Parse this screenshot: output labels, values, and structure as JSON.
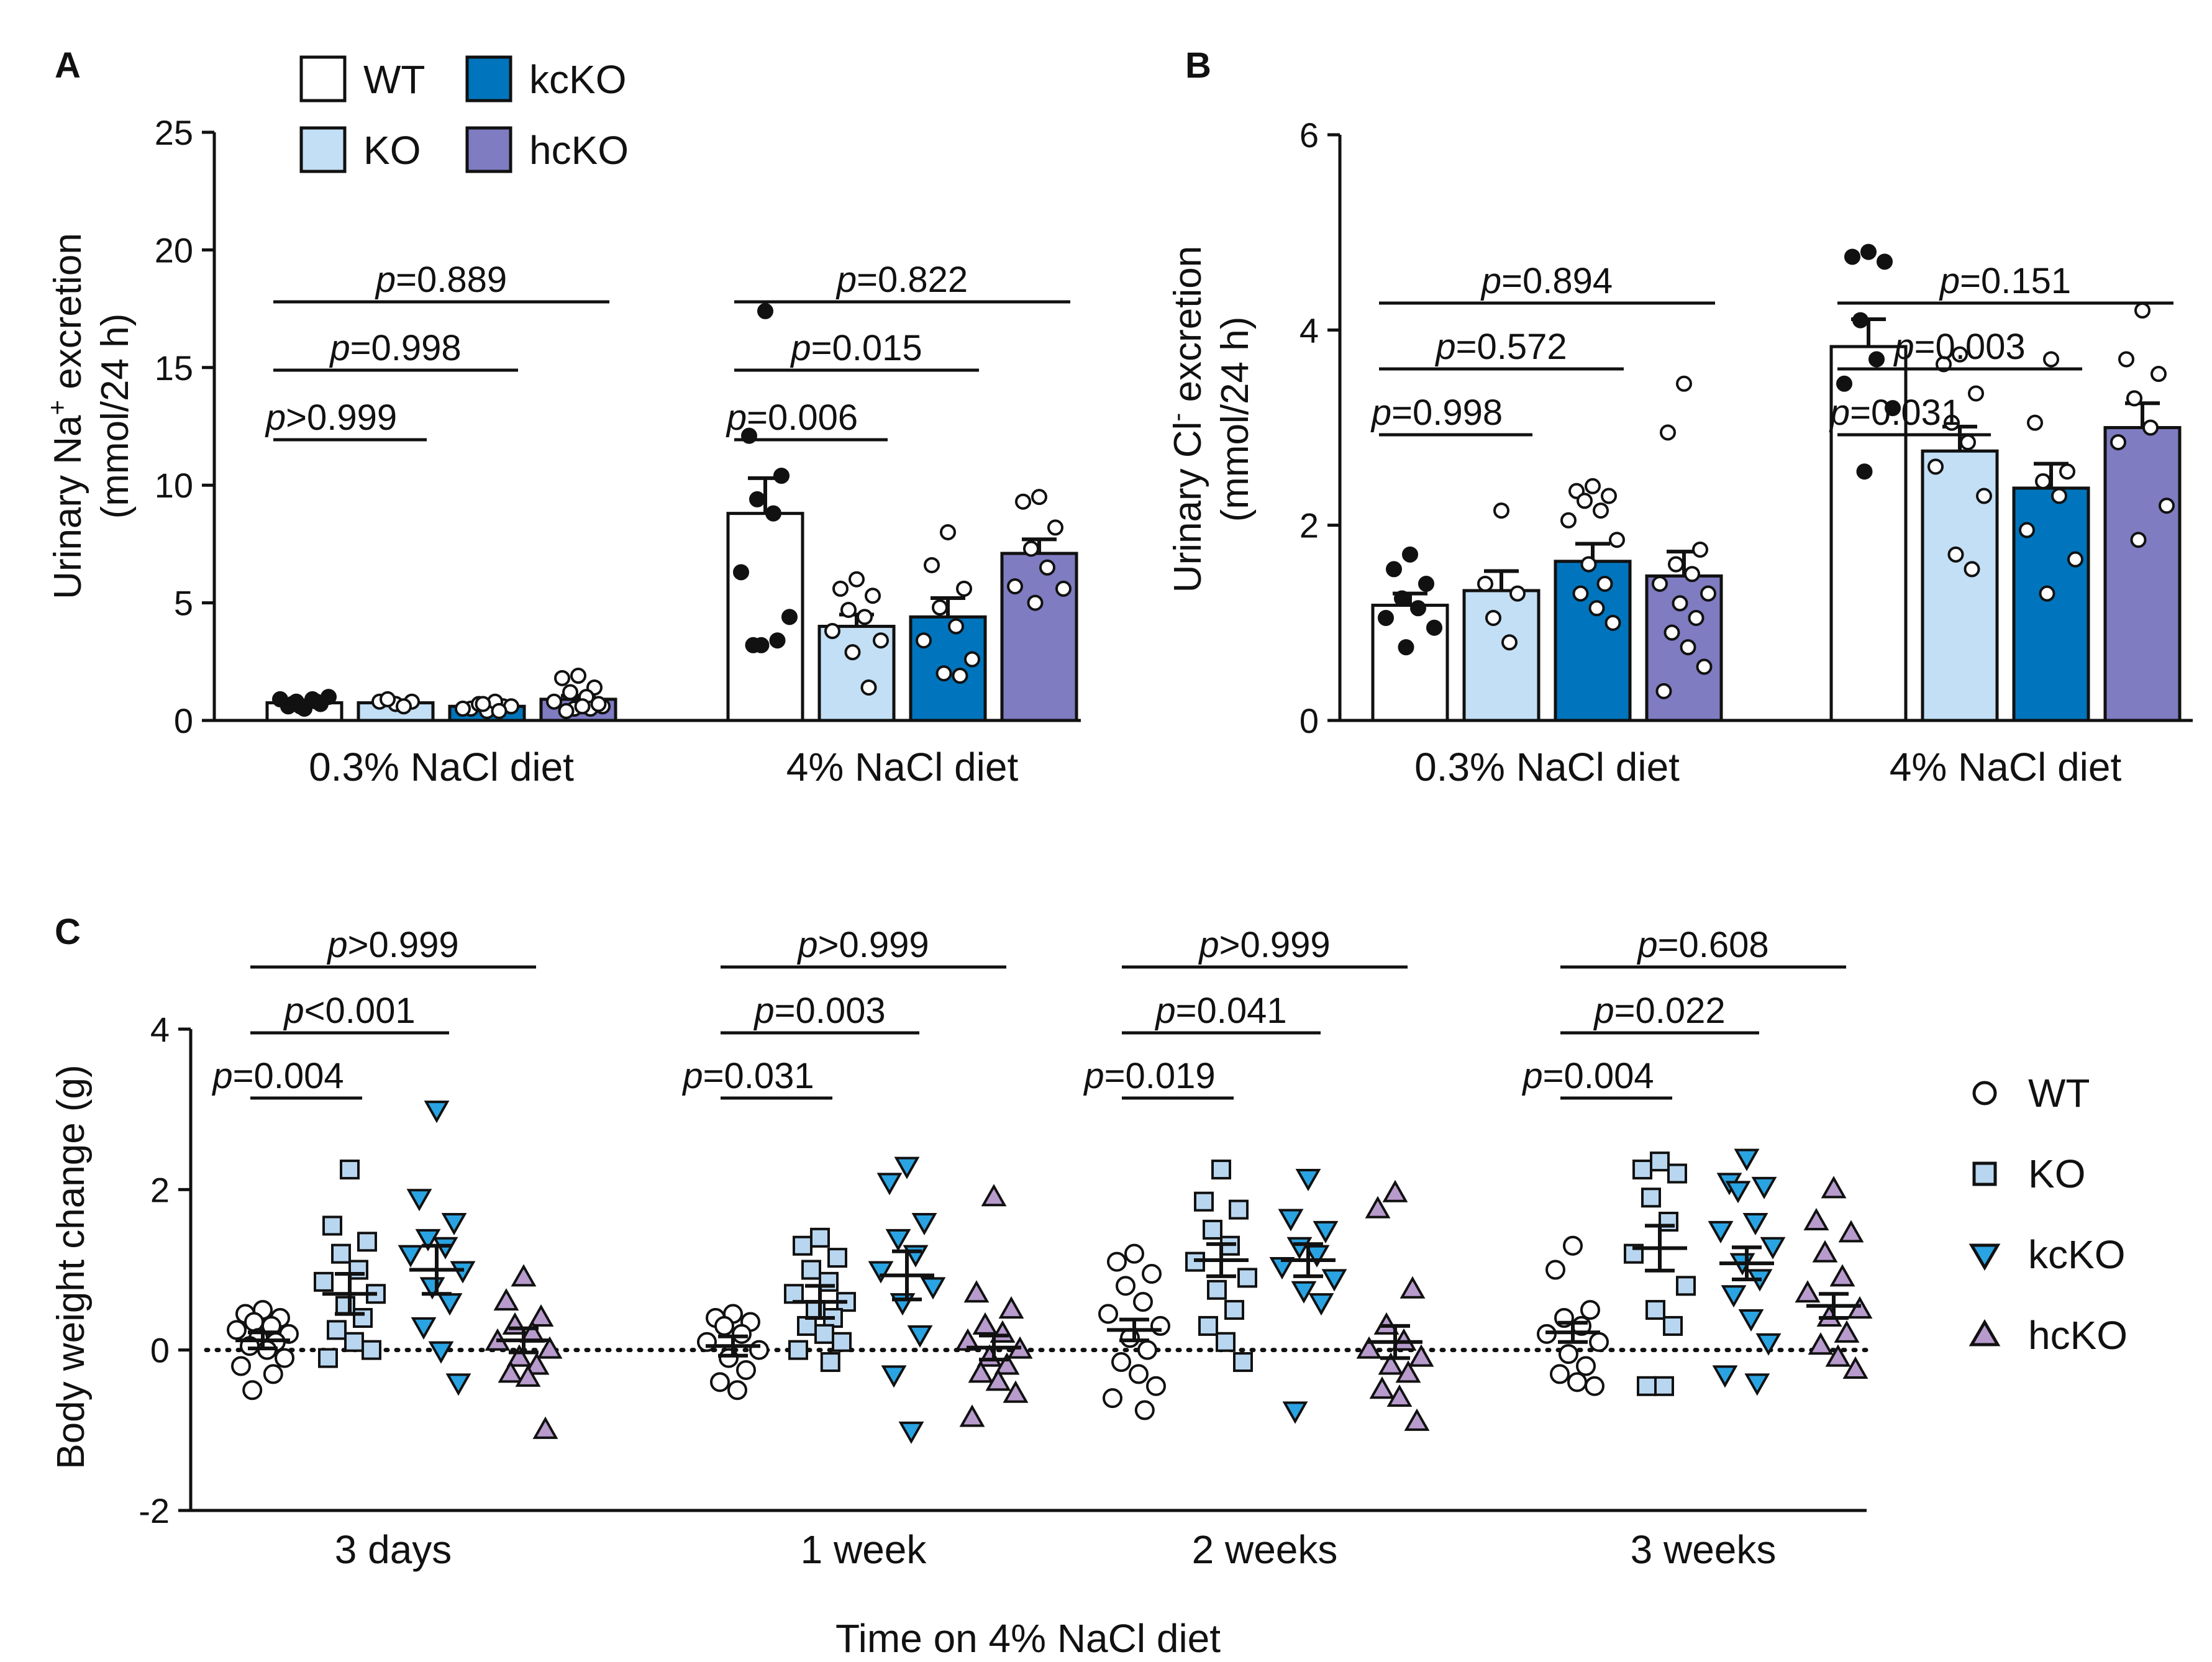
{
  "colors": {
    "WT": "#ffffff",
    "KO": "#c3dff5",
    "kcKO": "#0075bd",
    "hcKO": "#7f7cc1",
    "KO_marker": "#b8d6f0",
    "kcKO_marker": "#2aa3e2",
    "hcKO_marker": "#b89bcd",
    "axis": "#111111"
  },
  "legend_bars": [
    {
      "key": "WT",
      "label": "WT"
    },
    {
      "key": "KO",
      "label": "KO"
    },
    {
      "key": "kcKO",
      "label": "kcKO"
    },
    {
      "key": "hcKO",
      "label": "hcKO"
    }
  ],
  "legend_c": [
    {
      "key": "WT",
      "label": "WT",
      "marker": "circle"
    },
    {
      "key": "KO",
      "label": "KO",
      "marker": "square"
    },
    {
      "key": "kcKO",
      "label": "kcKO",
      "marker": "triangle-down"
    },
    {
      "key": "hcKO",
      "label": "hcKO",
      "marker": "triangle-up"
    }
  ],
  "chart_data": [
    {
      "panel": "A",
      "type": "bar",
      "ylabel_line1_pre": "Urinary Na",
      "ylabel_line1_sup": "+",
      "ylabel_line1_post": " excretion",
      "ylabel_line2": "(mmol/24 h)",
      "ylim": [
        0,
        25
      ],
      "yticks": [
        0,
        5,
        10,
        15,
        20,
        25
      ],
      "groups": [
        "0.3% NaCl diet",
        "4% NaCl diet"
      ],
      "series": [
        {
          "name": "WT",
          "means": [
            0.75,
            8.8
          ],
          "sems": [
            0.1,
            1.5
          ],
          "points": [
            [
              0.5,
              0.6,
              0.7,
              0.8,
              0.9,
              0.9,
              1.0,
              0.6,
              0.8,
              0.7
            ],
            [
              17.4,
              12.1,
              10.4,
              9.4,
              8.8,
              6.3,
              4.4,
              3.2,
              3.4,
              3.2
            ]
          ]
        },
        {
          "name": "KO",
          "means": [
            0.75,
            4.0
          ],
          "sems": [
            0.1,
            0.5
          ],
          "points": [
            [
              0.7,
              0.8,
              0.8,
              0.9,
              0.6
            ],
            [
              6.0,
              5.6,
              5.3,
              4.7,
              4.4,
              3.8,
              3.4,
              2.9,
              1.4
            ]
          ]
        },
        {
          "name": "kcKO",
          "means": [
            0.6,
            4.4
          ],
          "sems": [
            0.1,
            0.8
          ],
          "points": [
            [
              0.4,
              0.5,
              0.6,
              0.7,
              0.8,
              0.5,
              0.6,
              0.7,
              0.4
            ],
            [
              8.0,
              6.6,
              5.6,
              4.8,
              4.0,
              3.4,
              2.6,
              2.0,
              1.9
            ]
          ]
        },
        {
          "name": "hcKO",
          "means": [
            0.9,
            7.1
          ],
          "sems": [
            0.15,
            0.6
          ],
          "points": [
            [
              1.9,
              1.8,
              1.4,
              1.2,
              1.0,
              0.8,
              0.6,
              0.5,
              0.5,
              0.4,
              0.6,
              0.7
            ],
            [
              9.5,
              9.3,
              8.2,
              7.3,
              6.5,
              5.7,
              5.6,
              5.0
            ]
          ]
        }
      ],
      "comparisons": [
        {
          "group": 0,
          "from": 0,
          "to": 1,
          "text_pre": "p",
          "text_post": ">0.999"
        },
        {
          "group": 0,
          "from": 0,
          "to": 2,
          "text_pre": "p",
          "text_post": "=0.998"
        },
        {
          "group": 0,
          "from": 0,
          "to": 3,
          "text_pre": "p",
          "text_post": "=0.889"
        },
        {
          "group": 1,
          "from": 0,
          "to": 1,
          "text_pre": "p",
          "text_post": "=0.006"
        },
        {
          "group": 1,
          "from": 0,
          "to": 2,
          "text_pre": "p",
          "text_post": "=0.015"
        },
        {
          "group": 1,
          "from": 0,
          "to": 3,
          "text_pre": "p",
          "text_post": "=0.822"
        }
      ]
    },
    {
      "panel": "B",
      "type": "bar",
      "ylabel_line1_pre": "Urinary Cl",
      "ylabel_line1_sup": "-",
      "ylabel_line1_post": " excretion",
      "ylabel_line2": "(mmol/24 h)",
      "ylim": [
        0,
        6
      ],
      "yticks": [
        0,
        2,
        4,
        6
      ],
      "groups": [
        "0.3% NaCl diet",
        "4% NaCl diet"
      ],
      "series": [
        {
          "name": "WT",
          "means": [
            1.18,
            3.83
          ],
          "sems": [
            0.12,
            0.28
          ],
          "points": [
            [
              1.7,
              1.55,
              1.4,
              1.25,
              1.15,
              1.05,
              0.95,
              0.75
            ],
            [
              4.8,
              4.75,
              4.7,
              4.1,
              3.7,
              3.45,
              3.2,
              2.55
            ]
          ]
        },
        {
          "name": "KO",
          "means": [
            1.33,
            2.76
          ],
          "sems": [
            0.2,
            0.25
          ],
          "points": [
            [
              2.15,
              1.4,
              1.3,
              1.05,
              0.8
            ],
            [
              3.75,
              3.65,
              3.35,
              3.05,
              2.85,
              2.6,
              2.3,
              1.7,
              1.55
            ]
          ]
        },
        {
          "name": "kcKO",
          "means": [
            1.63,
            2.38
          ],
          "sems": [
            0.18,
            0.25
          ],
          "points": [
            [
              2.4,
              2.35,
              2.3,
              2.25,
              2.15,
              2.05,
              1.85,
              1.6,
              1.4,
              1.3,
              1.15,
              1.0
            ],
            [
              3.7,
              3.05,
              2.55,
              2.45,
              2.3,
              1.95,
              1.65,
              1.3
            ]
          ]
        },
        {
          "name": "hcKO",
          "means": [
            1.48,
            3.0
          ],
          "sems": [
            0.25,
            0.25
          ],
          "points": [
            [
              3.45,
              2.95,
              1.75,
              1.6,
              1.5,
              1.4,
              1.3,
              1.2,
              1.05,
              0.9,
              0.75,
              0.55,
              0.3
            ],
            [
              4.2,
              3.7,
              3.55,
              3.3,
              3.0,
              2.85,
              2.2,
              1.85
            ]
          ]
        }
      ],
      "comparisons": [
        {
          "group": 0,
          "from": 0,
          "to": 1,
          "text_pre": "p",
          "text_post": "=0.998"
        },
        {
          "group": 0,
          "from": 0,
          "to": 2,
          "text_pre": "p",
          "text_post": "=0.572"
        },
        {
          "group": 0,
          "from": 0,
          "to": 3,
          "text_pre": "p",
          "text_post": "=0.894"
        },
        {
          "group": 1,
          "from": 0,
          "to": 1,
          "text_pre": "p",
          "text_post": "=0.031"
        },
        {
          "group": 1,
          "from": 0,
          "to": 2,
          "text_pre": "p",
          "text_post": "=0.003"
        },
        {
          "group": 1,
          "from": 0,
          "to": 3,
          "text_pre": "p",
          "text_post": "=0.151"
        }
      ]
    },
    {
      "panel": "C",
      "type": "scatter",
      "ylabel": "Body weight change (g)",
      "xlabel": "Time on 4% NaCl diet",
      "ylim": [
        -2,
        4
      ],
      "yticks": [
        -2,
        0,
        2,
        4
      ],
      "groups": [
        "3 days",
        "1 week",
        "2 weeks",
        "3 weeks"
      ],
      "series": [
        {
          "name": "WT",
          "marker": "circle",
          "means": [
            0.12,
            0.05,
            0.25,
            0.22
          ],
          "sems": [
            0.1,
            0.12,
            0.13,
            0.12
          ],
          "points": [
            [
              0.5,
              0.45,
              0.4,
              0.35,
              0.3,
              0.25,
              0.2,
              0.15,
              0.1,
              0.05,
              0.0,
              -0.1,
              -0.2,
              -0.3,
              -0.5
            ],
            [
              0.45,
              0.4,
              0.35,
              0.3,
              0.2,
              0.1,
              0.0,
              -0.1,
              -0.25,
              -0.4,
              -0.5
            ],
            [
              1.2,
              1.1,
              0.95,
              0.8,
              0.6,
              0.45,
              0.3,
              0.15,
              0.0,
              -0.15,
              -0.3,
              -0.45,
              -0.6,
              -0.75
            ],
            [
              1.3,
              1.0,
              0.5,
              0.4,
              0.3,
              0.2,
              0.1,
              -0.05,
              -0.2,
              -0.3,
              -0.4,
              -0.45
            ]
          ]
        },
        {
          "name": "KO",
          "marker": "square",
          "means": [
            0.7,
            0.6,
            1.12,
            1.27
          ],
          "sems": [
            0.25,
            0.2,
            0.2,
            0.28
          ],
          "points": [
            [
              2.25,
              1.55,
              1.35,
              1.2,
              1.0,
              0.85,
              0.7,
              0.55,
              0.4,
              0.25,
              0.1,
              0.0,
              -0.1
            ],
            [
              1.4,
              1.3,
              1.15,
              1.0,
              0.85,
              0.7,
              0.6,
              0.5,
              0.4,
              0.3,
              0.2,
              0.1,
              0.0,
              -0.15
            ],
            [
              2.25,
              1.85,
              1.75,
              1.5,
              1.3,
              1.1,
              0.9,
              0.75,
              0.5,
              0.3,
              0.1,
              -0.15
            ],
            [
              2.35,
              2.25,
              2.2,
              1.9,
              1.6,
              1.2,
              0.8,
              0.5,
              0.3,
              -0.45,
              -0.45
            ]
          ]
        },
        {
          "name": "kcKO",
          "marker": "triangle-down",
          "means": [
            1.0,
            0.93,
            1.12,
            1.08
          ],
          "sems": [
            0.3,
            0.3,
            0.2,
            0.2
          ],
          "points": [
            [
              3.0,
              1.9,
              1.6,
              1.4,
              1.3,
              1.2,
              1.0,
              0.8,
              0.6,
              0.3,
              0.0,
              -0.4
            ],
            [
              2.3,
              2.1,
              1.6,
              1.4,
              1.2,
              1.0,
              0.8,
              0.6,
              0.2,
              -0.3,
              -1.0
            ],
            [
              2.15,
              1.65,
              1.5,
              1.3,
              1.2,
              1.05,
              0.9,
              0.75,
              0.6,
              -0.75
            ],
            [
              2.4,
              2.1,
              2.05,
              2.0,
              1.6,
              1.5,
              1.3,
              1.1,
              0.9,
              0.7,
              0.4,
              0.1,
              -0.3,
              -0.4
            ]
          ]
        },
        {
          "name": "hcKO",
          "marker": "triangle-up",
          "means": [
            0.12,
            0.03,
            0.1,
            0.55
          ],
          "sems": [
            0.15,
            0.15,
            0.2,
            0.15
          ],
          "points": [
            [
              0.9,
              0.6,
              0.4,
              0.3,
              0.2,
              0.1,
              0.0,
              -0.1,
              -0.2,
              -0.3,
              -0.35,
              -1.0
            ],
            [
              1.9,
              0.7,
              0.5,
              0.3,
              0.2,
              0.1,
              0.0,
              -0.1,
              -0.2,
              -0.3,
              -0.4,
              -0.55,
              -0.85
            ],
            [
              1.95,
              1.75,
              0.75,
              0.3,
              0.1,
              0.0,
              -0.1,
              -0.2,
              -0.3,
              -0.5,
              -0.6,
              -0.9
            ],
            [
              2.0,
              1.6,
              1.45,
              1.2,
              0.9,
              0.7,
              0.5,
              0.4,
              0.2,
              0.05,
              -0.1,
              -0.25
            ]
          ]
        }
      ],
      "comparisons": [
        {
          "group": 0,
          "from": 0,
          "to": 1,
          "text_pre": "p",
          "text_post": "=0.004"
        },
        {
          "group": 0,
          "from": 0,
          "to": 2,
          "text_pre": "p",
          "text_post": "<0.001"
        },
        {
          "group": 0,
          "from": 0,
          "to": 3,
          "text_pre": "p",
          "text_post": ">0.999"
        },
        {
          "group": 1,
          "from": 0,
          "to": 1,
          "text_pre": "p",
          "text_post": "=0.031"
        },
        {
          "group": 1,
          "from": 0,
          "to": 2,
          "text_pre": "p",
          "text_post": "=0.003"
        },
        {
          "group": 1,
          "from": 0,
          "to": 3,
          "text_pre": "p",
          "text_post": ">0.999"
        },
        {
          "group": 2,
          "from": 0,
          "to": 1,
          "text_pre": "p",
          "text_post": "=0.019"
        },
        {
          "group": 2,
          "from": 0,
          "to": 2,
          "text_pre": "p",
          "text_post": "=0.041"
        },
        {
          "group": 2,
          "from": 0,
          "to": 3,
          "text_pre": "p",
          "text_post": ">0.999"
        },
        {
          "group": 3,
          "from": 0,
          "to": 1,
          "text_pre": "p",
          "text_post": "=0.004"
        },
        {
          "group": 3,
          "from": 0,
          "to": 2,
          "text_pre": "p",
          "text_post": "=0.022"
        },
        {
          "group": 3,
          "from": 0,
          "to": 3,
          "text_pre": "p",
          "text_post": "=0.608"
        }
      ]
    }
  ]
}
